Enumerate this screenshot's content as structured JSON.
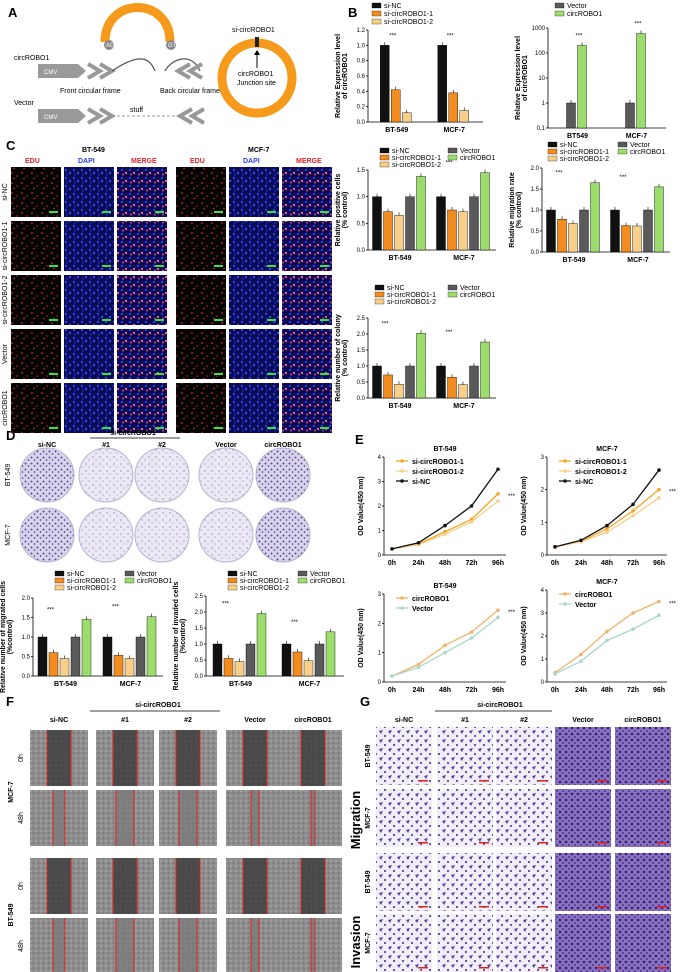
{
  "panels": {
    "A": {
      "label": "A",
      "texts": {
        "circ": "circROBO1",
        "cmv1": "CMV",
        "cmv2": "CMV",
        "vector": "Vector",
        "front": "Front circular frame",
        "back": "Back circular frame",
        "stuff": "stuff",
        "ag": "AG",
        "gt": "GT",
        "si": "si-circROBO1",
        "junction": "circROBO1\nJunction site"
      }
    },
    "B": {
      "label": "B"
    },
    "C": {
      "label": "C",
      "bt": "BT-549",
      "mcf": "MCF-7",
      "cols": [
        "EDU",
        "DAPI",
        "MERGE",
        "EDU",
        "DAPI",
        "MERGE"
      ],
      "rows": [
        "si-NC",
        "si-circROBO1-1",
        "si-circROBO1-2",
        "Vector",
        "circROBO1"
      ]
    },
    "D": {
      "label": "D",
      "col_labels": [
        "si-NC",
        "#1",
        "#2",
        "Vector",
        "circROBO1"
      ],
      "group": "si-circROBO1",
      "rows": [
        "BT-549",
        "MCF-7"
      ]
    },
    "E": {
      "label": "E"
    },
    "F": {
      "label": "F",
      "cols": [
        "si-NC",
        "#1",
        "#2",
        "Vector",
        "circROBO1"
      ],
      "group": "si-circROBO1",
      "cells": [
        [
          "MCF-7",
          "0h"
        ],
        [
          "MCF-7",
          "48h"
        ],
        [
          "BT-549",
          "0h"
        ],
        [
          "BT-549",
          "48h"
        ]
      ]
    },
    "G": {
      "label": "G",
      "cols": [
        "si-NC",
        "#1",
        "#2",
        "Vector",
        "circROBO1"
      ],
      "group": "si-circROBO1",
      "groups": [
        "Migration",
        "Invasion"
      ],
      "rows": [
        "BT-549",
        "MCF-7",
        "BT-549",
        "MCF-7"
      ]
    }
  },
  "colors": {
    "black": "#111111",
    "orange": "#f28c1e",
    "lightorange": "#f7cf8b",
    "gray": "#5a5a5a",
    "green": "#9bdc6d",
    "teal": "#a8d8c8"
  },
  "chart_data": [
    {
      "id": "B1",
      "type": "bar",
      "ylabel": "Relative Expression level\nof circROBO1",
      "categories": [
        "BT-549",
        "MCF-7"
      ],
      "ylim": [
        0,
        1.2
      ],
      "ticks": [
        "0.0",
        "0.2",
        "0.4",
        "0.6",
        "0.8",
        "1.0",
        "1.2"
      ],
      "series": [
        {
          "name": "si-NC",
          "values": [
            1.0,
            1.0
          ]
        },
        {
          "name": "si-circROBO1-1",
          "values": [
            0.42,
            0.38
          ]
        },
        {
          "name": "si-circROBO1-2",
          "values": [
            0.12,
            0.15
          ]
        }
      ]
    },
    {
      "id": "B2",
      "type": "bar",
      "log": true,
      "ylabel": "Relative Expression level\nof circROBO1",
      "categories": [
        "BT549",
        "MCF-7"
      ],
      "ylim": [
        0.1,
        1000
      ],
      "ticks": [
        "0.1",
        "1",
        "10",
        "100",
        "1000"
      ],
      "series": [
        {
          "name": "Vector",
          "values": [
            1,
            1
          ]
        },
        {
          "name": "circROBO1",
          "values": [
            200,
            600
          ]
        }
      ]
    },
    {
      "id": "C1",
      "type": "bar",
      "ylabel": "Relative positive cells\n(% control)",
      "categories": [
        "BT-549",
        "MCF-7"
      ],
      "ylim": [
        0,
        1.5
      ],
      "ticks": [
        "0.0",
        "0.5",
        "1.0",
        "1.5"
      ],
      "series": [
        {
          "name": "si-NC",
          "values": [
            1.0,
            1.0
          ]
        },
        {
          "name": "si-circROBO1-1",
          "values": [
            0.72,
            0.75
          ]
        },
        {
          "name": "si-circROBO1-2",
          "values": [
            0.65,
            0.72
          ]
        },
        {
          "name": "Vector",
          "values": [
            1.0,
            1.0
          ]
        },
        {
          "name": "circROBO1",
          "values": [
            1.38,
            1.45
          ]
        }
      ]
    },
    {
      "id": "C2",
      "type": "bar",
      "ylabel": "Relative migration rate\n(% control)",
      "categories": [
        "BT-549",
        "MCF-7"
      ],
      "ylim": [
        0,
        2.0
      ],
      "ticks": [
        "0.0",
        "0.5",
        "1.0",
        "1.5",
        "2.0"
      ],
      "series": [
        {
          "name": "si-NC",
          "values": [
            1.0,
            1.0
          ]
        },
        {
          "name": "si-circROBO1-1",
          "values": [
            0.78,
            0.63
          ]
        },
        {
          "name": "si-circROBO1-2",
          "values": [
            0.68,
            0.62
          ]
        },
        {
          "name": "Vector",
          "values": [
            1.0,
            1.0
          ]
        },
        {
          "name": "circROBO1",
          "values": [
            1.65,
            1.55
          ]
        }
      ]
    },
    {
      "id": "C3",
      "type": "bar",
      "ylabel": "Relative number of colony\n(% control)",
      "categories": [
        "BT-549",
        "MCF-7"
      ],
      "ylim": [
        0,
        2.5
      ],
      "ticks": [
        "0.0",
        "0.5",
        "1.0",
        "1.5",
        "2.0",
        "2.5"
      ],
      "series": [
        {
          "name": "si-NC",
          "values": [
            1.0,
            1.0
          ]
        },
        {
          "name": "si-circROBO1-1",
          "values": [
            0.72,
            0.65
          ]
        },
        {
          "name": "si-circROBO1-2",
          "values": [
            0.43,
            0.42
          ]
        },
        {
          "name": "Vector",
          "values": [
            1.0,
            1.0
          ]
        },
        {
          "name": "circROBO1",
          "values": [
            2.02,
            1.75
          ]
        }
      ]
    },
    {
      "id": "D1",
      "type": "bar",
      "ylabel": "Relative number of migrated cells\n(%control)",
      "categories": [
        "BT-549",
        "MCF-7"
      ],
      "ylim": [
        0,
        2.0
      ],
      "ticks": [
        "0.0",
        "0.5",
        "1.0",
        "1.5",
        "2.0"
      ],
      "series": [
        {
          "name": "si-NC",
          "values": [
            1.0,
            1.0
          ]
        },
        {
          "name": "si-circROBO1-1",
          "values": [
            0.6,
            0.53
          ]
        },
        {
          "name": "si-circROBO1-2",
          "values": [
            0.45,
            0.45
          ]
        },
        {
          "name": "Vector",
          "values": [
            1.0,
            1.0
          ]
        },
        {
          "name": "circROBO1",
          "values": [
            1.45,
            1.52
          ]
        }
      ]
    },
    {
      "id": "D2",
      "type": "bar",
      "ylabel": "Relative number of invaded cells\n(%control)",
      "categories": [
        "BT-549",
        "MCF-7"
      ],
      "ylim": [
        0,
        2.5
      ],
      "ticks": [
        "0.0",
        "0.5",
        "1.0",
        "1.5",
        "2.0",
        "2.5"
      ],
      "series": [
        {
          "name": "si-NC",
          "values": [
            1.0,
            1.0
          ]
        },
        {
          "name": "si-circROBO1-1",
          "values": [
            0.55,
            0.75
          ]
        },
        {
          "name": "si-circROBO1-2",
          "values": [
            0.45,
            0.48
          ]
        },
        {
          "name": "Vector",
          "values": [
            1.0,
            1.0
          ]
        },
        {
          "name": "circROBO1",
          "values": [
            1.95,
            1.38
          ]
        }
      ]
    },
    {
      "id": "E1",
      "type": "line",
      "title": "BT-549",
      "ylabel": "OD Value(450 nm)",
      "x": [
        "0h",
        "24h",
        "48h",
        "72h",
        "96h"
      ],
      "ylim": [
        0,
        4
      ],
      "ticks": [
        "0",
        "1",
        "2",
        "3",
        "4"
      ],
      "series": [
        {
          "name": "si-circROBO1-1",
          "values": [
            0.25,
            0.45,
            0.95,
            1.45,
            2.5
          ]
        },
        {
          "name": "si-circROBO1-2",
          "values": [
            0.25,
            0.42,
            0.85,
            1.35,
            2.2
          ]
        },
        {
          "name": "si-NC",
          "values": [
            0.25,
            0.5,
            1.2,
            2.0,
            3.5
          ]
        }
      ]
    },
    {
      "id": "E2",
      "type": "line",
      "title": "MCF-7",
      "ylabel": "OD Value(450 nm)",
      "x": [
        "0h",
        "24h",
        "48h",
        "72h",
        "96h"
      ],
      "ylim": [
        0,
        3
      ],
      "ticks": [
        "0",
        "1",
        "2",
        "3"
      ],
      "series": [
        {
          "name": "si-circROBO1-1",
          "values": [
            0.25,
            0.42,
            0.8,
            1.35,
            2.0
          ]
        },
        {
          "name": "si-circROBO1-2",
          "values": [
            0.25,
            0.4,
            0.7,
            1.2,
            1.75
          ]
        },
        {
          "name": "si-NC",
          "values": [
            0.25,
            0.45,
            0.9,
            1.55,
            2.6
          ]
        }
      ]
    },
    {
      "id": "E3",
      "type": "line",
      "title": "BT-549",
      "ylabel": "OD Value(450 nm)",
      "x": [
        "0h",
        "24h",
        "48h",
        "72h",
        "96h"
      ],
      "ylim": [
        0,
        3
      ],
      "ticks": [
        "0",
        "1",
        "2",
        "3"
      ],
      "series": [
        {
          "name": "circROBO1",
          "values": [
            0.2,
            0.6,
            1.25,
            1.7,
            2.45
          ]
        },
        {
          "name": "Vector",
          "values": [
            0.2,
            0.5,
            1.0,
            1.5,
            2.2
          ]
        }
      ]
    },
    {
      "id": "E4",
      "type": "line",
      "title": "MCF-7",
      "ylabel": "OD Value(450 nm)",
      "x": [
        "0h",
        "24h",
        "48h",
        "72h",
        "96h"
      ],
      "ylim": [
        0,
        4
      ],
      "ticks": [
        "0",
        "1",
        "2",
        "3",
        "4"
      ],
      "series": [
        {
          "name": "circROBO1",
          "values": [
            0.4,
            1.2,
            2.2,
            3.0,
            3.5
          ]
        },
        {
          "name": "Vector",
          "values": [
            0.35,
            0.9,
            1.8,
            2.3,
            2.9
          ]
        }
      ]
    }
  ]
}
